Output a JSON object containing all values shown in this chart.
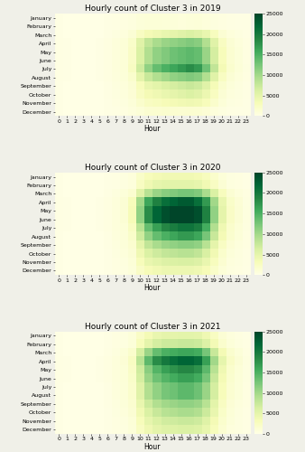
{
  "title_2019": "Hourly count of Cluster 3 in 2019",
  "title_2020": "Hourly count of Cluster 3 in 2020",
  "title_2021": "Hourly count of Cluster 3 in 2021",
  "xlabel": "Hour",
  "months": [
    "January",
    "February",
    "March",
    "April",
    "May",
    "June",
    "July",
    "August",
    "September",
    "October",
    "November",
    "December"
  ],
  "hours": [
    0,
    1,
    2,
    3,
    4,
    5,
    6,
    7,
    8,
    9,
    10,
    11,
    12,
    13,
    14,
    15,
    16,
    17,
    18,
    19,
    20,
    21,
    22,
    23
  ],
  "vmin": 0,
  "vmax": 25000,
  "cmap": "YlGn",
  "data_2019": [
    [
      100,
      50,
      40,
      30,
      25,
      40,
      100,
      200,
      300,
      500,
      800,
      1000,
      1000,
      900,
      800,
      700,
      800,
      900,
      700,
      500,
      300,
      200,
      150,
      100
    ],
    [
      100,
      50,
      40,
      30,
      25,
      40,
      100,
      200,
      300,
      500,
      800,
      1000,
      1000,
      900,
      800,
      700,
      800,
      900,
      700,
      500,
      300,
      200,
      150,
      100
    ],
    [
      150,
      80,
      60,
      45,
      35,
      70,
      200,
      400,
      600,
      1200,
      2500,
      3500,
      4000,
      4500,
      5000,
      5500,
      6000,
      5500,
      4500,
      2800,
      1300,
      700,
      450,
      250
    ],
    [
      200,
      100,
      80,
      60,
      50,
      100,
      300,
      700,
      1000,
      2000,
      5500,
      8000,
      9500,
      10500,
      11000,
      11500,
      12000,
      11500,
      9000,
      5500,
      2500,
      1200,
      700,
      300
    ],
    [
      200,
      100,
      80,
      60,
      50,
      100,
      300,
      700,
      1000,
      2200,
      6000,
      9000,
      11000,
      12000,
      13000,
      13500,
      14000,
      13500,
      10500,
      6500,
      3000,
      1400,
      800,
      350
    ],
    [
      200,
      100,
      80,
      60,
      50,
      100,
      300,
      700,
      1000,
      2200,
      6000,
      9000,
      11000,
      12000,
      13000,
      13500,
      14000,
      13500,
      10500,
      6500,
      3000,
      1400,
      800,
      350
    ],
    [
      200,
      100,
      80,
      60,
      50,
      100,
      300,
      700,
      1000,
      2500,
      7000,
      11000,
      13500,
      15000,
      16000,
      17000,
      18000,
      17000,
      13000,
      8000,
      3500,
      1600,
      900,
      400
    ],
    [
      200,
      100,
      80,
      60,
      50,
      100,
      300,
      600,
      900,
      1800,
      5000,
      7500,
      9000,
      10000,
      11000,
      11500,
      12000,
      11500,
      9000,
      5500,
      2500,
      1200,
      700,
      300
    ],
    [
      150,
      80,
      60,
      45,
      35,
      80,
      200,
      500,
      700,
      1300,
      3000,
      4500,
      5200,
      6000,
      6500,
      7000,
      7500,
      7000,
      5500,
      3300,
      1600,
      800,
      500,
      250
    ],
    [
      150,
      80,
      60,
      45,
      35,
      70,
      200,
      400,
      600,
      1100,
      2500,
      3500,
      4000,
      4500,
      5000,
      5500,
      6000,
      5500,
      4200,
      2600,
      1200,
      600,
      400,
      220
    ],
    [
      120,
      60,
      50,
      35,
      30,
      60,
      150,
      350,
      500,
      900,
      1800,
      2500,
      2800,
      3200,
      3500,
      3800,
      4000,
      3800,
      3000,
      1800,
      900,
      450,
      300,
      180
    ],
    [
      100,
      50,
      40,
      30,
      25,
      40,
      100,
      250,
      350,
      600,
      1000,
      1400,
      1500,
      1600,
      1500,
      1400,
      1500,
      1400,
      1100,
      700,
      400,
      250,
      180,
      120
    ]
  ],
  "data_2020": [
    [
      100,
      50,
      40,
      30,
      25,
      40,
      100,
      250,
      400,
      700,
      2000,
      3000,
      3500,
      3800,
      3800,
      3800,
      3800,
      3500,
      2800,
      1800,
      900,
      450,
      300,
      150
    ],
    [
      100,
      50,
      40,
      30,
      25,
      40,
      100,
      250,
      400,
      700,
      2500,
      4000,
      4800,
      5200,
      5200,
      5200,
      5200,
      4800,
      3800,
      2400,
      1200,
      550,
      350,
      150
    ],
    [
      150,
      80,
      60,
      45,
      35,
      70,
      200,
      500,
      800,
      1500,
      5500,
      8500,
      10500,
      11500,
      12000,
      12500,
      12500,
      12000,
      9500,
      6000,
      2800,
      1300,
      750,
      350
    ],
    [
      200,
      100,
      80,
      60,
      50,
      100,
      300,
      700,
      1200,
      3000,
      10000,
      16000,
      19000,
      21000,
      22000,
      23000,
      23000,
      21000,
      17000,
      10000,
      4500,
      2000,
      1100,
      450
    ],
    [
      200,
      100,
      80,
      60,
      50,
      100,
      300,
      700,
      1200,
      3200,
      11000,
      18000,
      22000,
      24000,
      25000,
      25000,
      25000,
      24000,
      19000,
      11000,
      5000,
      2200,
      1200,
      500
    ],
    [
      200,
      100,
      80,
      60,
      50,
      100,
      300,
      700,
      1200,
      3200,
      11000,
      18000,
      22000,
      24000,
      25000,
      25000,
      25000,
      24000,
      19000,
      11000,
      5000,
      2200,
      1200,
      500
    ],
    [
      200,
      100,
      80,
      60,
      50,
      100,
      300,
      700,
      1000,
      2500,
      8500,
      13500,
      16500,
      18500,
      19500,
      20500,
      20500,
      19500,
      15500,
      9000,
      4000,
      1800,
      1000,
      450
    ],
    [
      150,
      80,
      60,
      45,
      35,
      80,
      250,
      600,
      900,
      2000,
      7000,
      11000,
      13500,
      15000,
      16000,
      17000,
      17000,
      16000,
      12500,
      7500,
      3500,
      1600,
      900,
      380
    ],
    [
      150,
      80,
      60,
      45,
      35,
      80,
      200,
      500,
      800,
      1500,
      5000,
      8000,
      9500,
      10500,
      11000,
      11500,
      11500,
      11000,
      8500,
      5000,
      2400,
      1100,
      650,
      300
    ],
    [
      120,
      60,
      50,
      35,
      30,
      60,
      180,
      450,
      700,
      1200,
      4000,
      6000,
      7000,
      7800,
      8200,
      8500,
      8500,
      8000,
      6200,
      3800,
      1800,
      850,
      500,
      250
    ],
    [
      100,
      50,
      40,
      30,
      25,
      50,
      150,
      350,
      550,
      1000,
      3000,
      4500,
      5200,
      5800,
      6000,
      6200,
      6200,
      5800,
      4500,
      2800,
      1400,
      650,
      400,
      200
    ],
    [
      100,
      50,
      40,
      30,
      25,
      40,
      120,
      300,
      450,
      800,
      2200,
      3200,
      3800,
      4200,
      4200,
      4200,
      4200,
      4000,
      3200,
      2000,
      1000,
      500,
      320,
      160
    ]
  ],
  "data_2021": [
    [
      100,
      50,
      40,
      30,
      25,
      40,
      120,
      300,
      450,
      800,
      2200,
      3500,
      4500,
      5000,
      5000,
      5200,
      5200,
      5000,
      4000,
      2500,
      1200,
      600,
      350,
      180
    ],
    [
      100,
      50,
      40,
      30,
      25,
      40,
      120,
      300,
      450,
      900,
      3000,
      5000,
      6500,
      7200,
      7200,
      7500,
      7500,
      7200,
      5800,
      3600,
      1700,
      800,
      450,
      200
    ],
    [
      150,
      80,
      60,
      45,
      35,
      80,
      220,
      550,
      900,
      1800,
      6500,
      10500,
      13500,
      15000,
      15500,
      16000,
      16000,
      15500,
      12500,
      7500,
      3500,
      1600,
      900,
      380
    ],
    [
      200,
      100,
      80,
      60,
      50,
      100,
      300,
      700,
      1100,
      2500,
      8500,
      14000,
      18000,
      20000,
      21000,
      22000,
      22000,
      21000,
      16500,
      10000,
      4800,
      2200,
      1200,
      500
    ],
    [
      200,
      100,
      80,
      60,
      50,
      100,
      300,
      700,
      1000,
      2200,
      7000,
      11500,
      14500,
      16500,
      17500,
      18500,
      18500,
      17500,
      14000,
      8500,
      4000,
      1800,
      1000,
      430
    ],
    [
      200,
      100,
      80,
      60,
      50,
      100,
      300,
      700,
      1000,
      2000,
      6500,
      10500,
      13000,
      14500,
      15500,
      16500,
      16500,
      15500,
      12500,
      7500,
      3500,
      1600,
      900,
      400
    ],
    [
      180,
      90,
      70,
      55,
      45,
      90,
      280,
      650,
      950,
      1800,
      5500,
      9000,
      11000,
      12500,
      13000,
      14000,
      14000,
      13000,
      10500,
      6500,
      3000,
      1400,
      800,
      360
    ],
    [
      180,
      90,
      70,
      55,
      45,
      90,
      280,
      650,
      950,
      1800,
      5500,
      9000,
      11000,
      12500,
      13000,
      14000,
      14000,
      13000,
      10500,
      6500,
      3000,
      1400,
      800,
      360
    ],
    [
      150,
      80,
      60,
      45,
      35,
      80,
      220,
      550,
      800,
      1500,
      4500,
      7200,
      9000,
      10000,
      10500,
      11000,
      11000,
      10500,
      8500,
      5200,
      2500,
      1100,
      650,
      300
    ],
    [
      130,
      65,
      50,
      38,
      30,
      65,
      180,
      450,
      700,
      1300,
      3800,
      6000,
      7500,
      8500,
      9000,
      9500,
      9500,
      9000,
      7200,
      4500,
      2100,
      1000,
      580,
      270
    ],
    [
      110,
      55,
      45,
      32,
      26,
      50,
      150,
      380,
      580,
      1050,
      3000,
      4800,
      6000,
      6800,
      7000,
      7400,
      7400,
      7000,
      5600,
      3500,
      1700,
      800,
      470,
      230
    ],
    [
      100,
      50,
      40,
      30,
      25,
      40,
      130,
      320,
      480,
      880,
      2500,
      4000,
      5000,
      5600,
      5700,
      6000,
      6000,
      5700,
      4600,
      2900,
      1400,
      680,
      400,
      200
    ]
  ],
  "figsize": [
    3.38,
    5.0
  ],
  "dpi": 100,
  "title_fontsize": 6.5,
  "tick_fontsize": 4.5,
  "label_fontsize": 5.5,
  "cbar_fontsize": 4.5,
  "background_color": "#f0f0e8"
}
